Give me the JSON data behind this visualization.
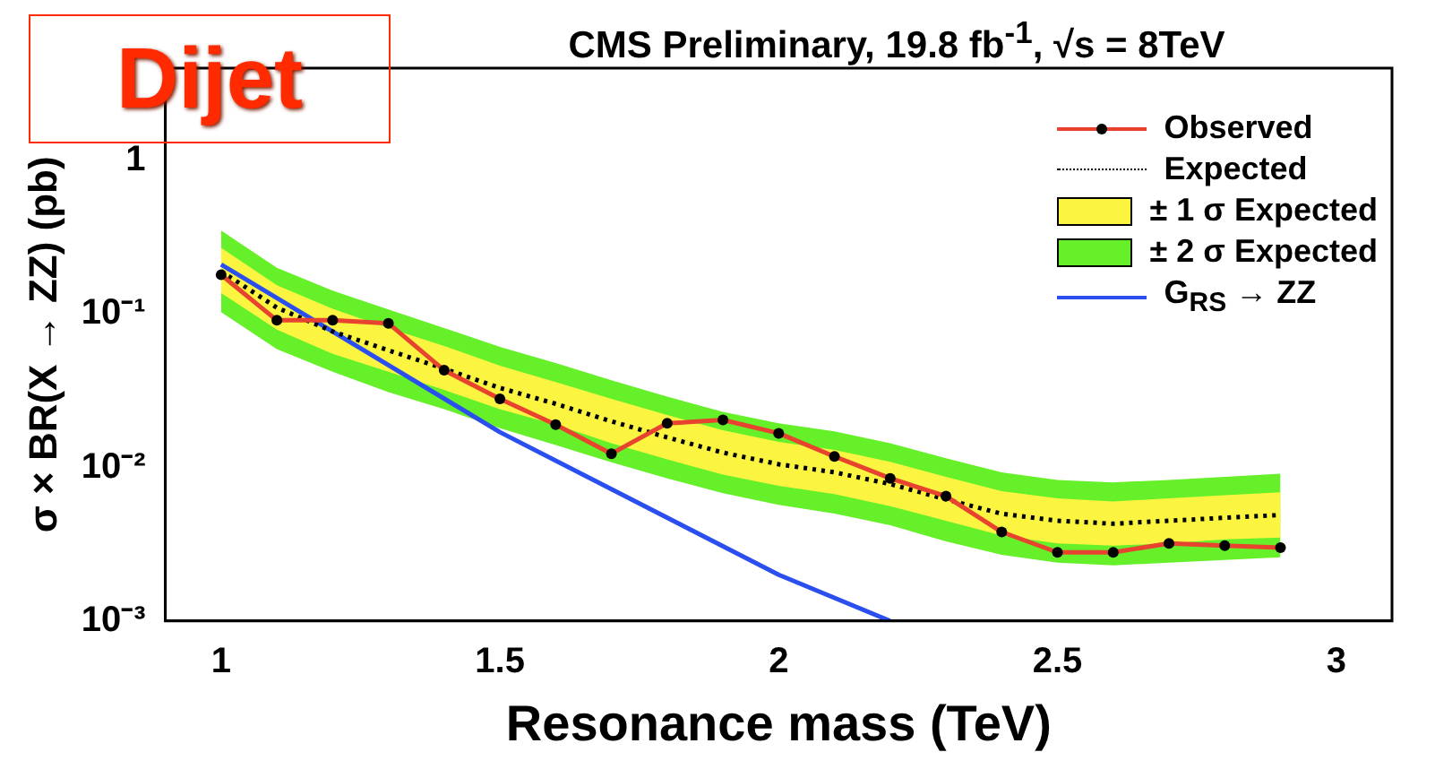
{
  "chart_data": {
    "type": "line",
    "title": "CMS Preliminary, 19.8 fb$^{-1}$, √s = 8TeV",
    "xlabel": "Resonance mass (TeV)",
    "ylabel": "σ × BR(X → ZZ) (pb)",
    "annotations": [
      "Dijet"
    ],
    "x": [
      1.0,
      1.1,
      1.2,
      1.3,
      1.4,
      1.5,
      1.6,
      1.7,
      1.8,
      1.9,
      2.0,
      2.1,
      2.2,
      2.3,
      2.4,
      2.5,
      2.6,
      2.7,
      2.8,
      2.9
    ],
    "series": [
      {
        "name": "Observed",
        "type": "line",
        "color": "#e8432e",
        "marker": "circle",
        "values": [
          0.18,
          0.091,
          0.091,
          0.087,
          0.043,
          0.028,
          0.019,
          0.0123,
          0.0194,
          0.0204,
          0.0167,
          0.0118,
          0.0085,
          0.0065,
          0.0038,
          0.0028,
          0.0028,
          0.0032,
          0.0031,
          0.003
        ]
      },
      {
        "name": "Expected",
        "type": "line",
        "color": "#000000",
        "marker": "none",
        "line_style": "dotted",
        "values": [
          0.19,
          0.11,
          0.077,
          0.058,
          0.044,
          0.033,
          0.026,
          0.02,
          0.0157,
          0.0125,
          0.0105,
          0.0093,
          0.0078,
          0.0062,
          0.005,
          0.0045,
          0.0043,
          0.0045,
          0.0047,
          0.0049
        ]
      },
      {
        "name": "± 1 σ Expected",
        "type": "area",
        "color": "#fbf542",
        "values": [
          null,
          null,
          null,
          null,
          null,
          null,
          null,
          null,
          null,
          null,
          null,
          null,
          null,
          null,
          null,
          null,
          null,
          null,
          null,
          null
        ],
        "lower": [
          0.137,
          0.079,
          0.055,
          0.042,
          0.032,
          0.024,
          0.019,
          0.0144,
          0.0113,
          0.009,
          0.0076,
          0.0067,
          0.0056,
          0.0045,
          0.0036,
          0.0032,
          0.0031,
          0.0032,
          0.0034,
          0.0035
        ],
        "upper": [
          0.27,
          0.154,
          0.108,
          0.081,
          0.062,
          0.046,
          0.036,
          0.028,
          0.022,
          0.0175,
          0.0147,
          0.013,
          0.0109,
          0.0087,
          0.007,
          0.0063,
          0.006,
          0.0063,
          0.0066,
          0.0069
        ]
      },
      {
        "name": "± 2 σ Expected",
        "type": "area",
        "color": "#66f02a",
        "values": [
          null,
          null,
          null,
          null,
          null,
          null,
          null,
          null,
          null,
          null,
          null,
          null,
          null,
          null,
          null,
          null,
          null,
          null,
          null,
          null
        ],
        "lower": [
          0.103,
          0.059,
          0.042,
          0.031,
          0.024,
          0.018,
          0.014,
          0.0108,
          0.0085,
          0.0068,
          0.0057,
          0.005,
          0.0042,
          0.0033,
          0.0027,
          0.0024,
          0.0023,
          0.0024,
          0.0025,
          0.0026
        ],
        "upper": [
          0.35,
          0.2,
          0.142,
          0.107,
          0.081,
          0.061,
          0.048,
          0.037,
          0.029,
          0.023,
          0.0194,
          0.0172,
          0.0144,
          0.0115,
          0.0093,
          0.0083,
          0.008,
          0.0083,
          0.0087,
          0.0091
        ]
      },
      {
        "name": "G$_{RS}$ → ZZ",
        "type": "line",
        "color": "#2b4fef",
        "marker": "none",
        "x": [
          1.0,
          1.5,
          2.0,
          2.2
        ],
        "values": [
          0.21,
          0.017,
          0.002,
          0.001
        ]
      }
    ],
    "log": "y",
    "grid": false,
    "legend": "top right",
    "xlim": [
      0.9,
      3.1
    ],
    "xticks": [
      1,
      1.5,
      2,
      2.5,
      3
    ],
    "ylim": [
      0.001,
      4
    ],
    "yticks": [
      {
        "value": 0.001,
        "label": "10⁻³"
      },
      {
        "value": 0.01,
        "label": "10⁻²"
      },
      {
        "value": 0.1,
        "label": "10⁻¹"
      },
      {
        "value": 1,
        "label": "1"
      }
    ]
  }
}
